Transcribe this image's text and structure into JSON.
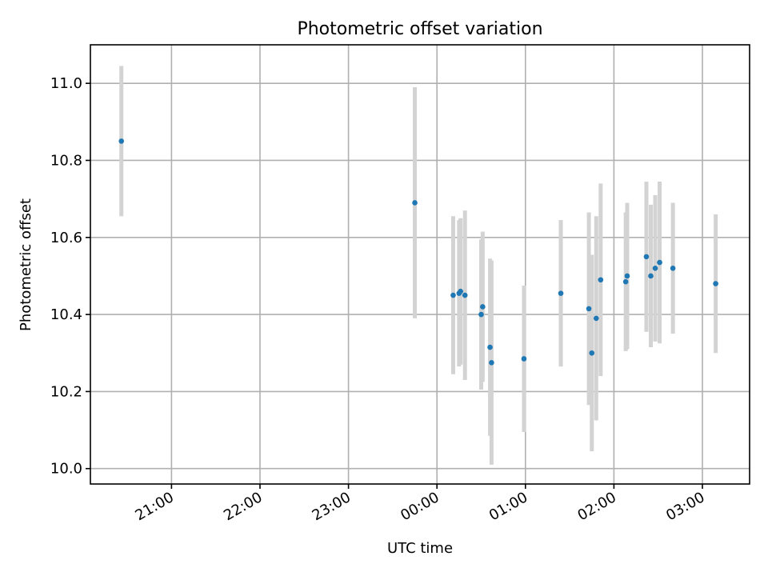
{
  "chart_data": {
    "type": "scatter",
    "title": "Photometric offset variation",
    "xlabel": "UTC time",
    "ylabel": "Photometric offset",
    "x_axis": {
      "kind": "time",
      "start": "20:05",
      "end": "03:32",
      "ticks": [
        "21:00",
        "22:00",
        "23:00",
        "00:00",
        "01:00",
        "02:00",
        "03:00"
      ]
    },
    "y_axis": {
      "ylim": [
        9.96,
        11.1
      ],
      "ticks": [
        "10.0",
        "10.2",
        "10.4",
        "10.6",
        "10.8",
        "11.0"
      ]
    },
    "grid": true,
    "colors": {
      "point": "#1f77b4",
      "error_bar": "#d3d3d3"
    },
    "points": [
      {
        "x": "20:26",
        "y": 10.85,
        "err": 0.195
      },
      {
        "x": "23:45",
        "y": 10.69,
        "err": 0.3
      },
      {
        "x": "00:11",
        "y": 10.45,
        "err": 0.205
      },
      {
        "x": "00:15",
        "y": 10.455,
        "err": 0.19
      },
      {
        "x": "00:16",
        "y": 10.46,
        "err": 0.19
      },
      {
        "x": "00:19",
        "y": 10.45,
        "err": 0.22
      },
      {
        "x": "00:30",
        "y": 10.4,
        "err": 0.195
      },
      {
        "x": "00:31",
        "y": 10.42,
        "err": 0.195
      },
      {
        "x": "00:36",
        "y": 10.315,
        "err": 0.23
      },
      {
        "x": "00:37",
        "y": 10.275,
        "err": 0.265
      },
      {
        "x": "00:59",
        "y": 10.285,
        "err": 0.19
      },
      {
        "x": "01:24",
        "y": 10.455,
        "err": 0.19
      },
      {
        "x": "01:43",
        "y": 10.415,
        "err": 0.25
      },
      {
        "x": "01:45",
        "y": 10.3,
        "err": 0.255
      },
      {
        "x": "01:48",
        "y": 10.39,
        "err": 0.265
      },
      {
        "x": "01:51",
        "y": 10.49,
        "err": 0.25
      },
      {
        "x": "02:08",
        "y": 10.485,
        "err": 0.18
      },
      {
        "x": "02:09",
        "y": 10.5,
        "err": 0.19
      },
      {
        "x": "02:22",
        "y": 10.55,
        "err": 0.195
      },
      {
        "x": "02:25",
        "y": 10.5,
        "err": 0.185
      },
      {
        "x": "02:28",
        "y": 10.52,
        "err": 0.19
      },
      {
        "x": "02:31",
        "y": 10.535,
        "err": 0.21
      },
      {
        "x": "02:40",
        "y": 10.52,
        "err": 0.17
      },
      {
        "x": "03:09",
        "y": 10.48,
        "err": 0.18
      }
    ]
  }
}
